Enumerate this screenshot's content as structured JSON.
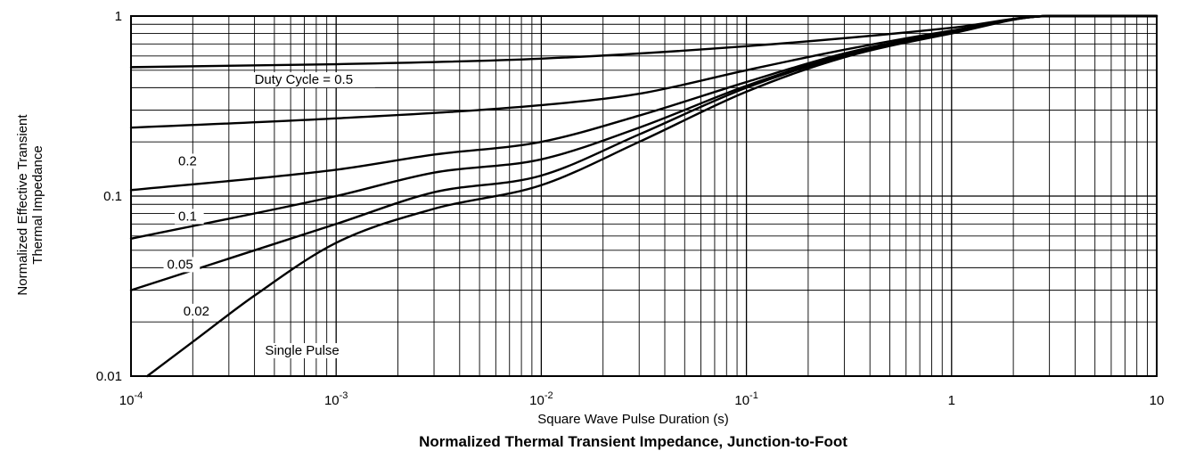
{
  "chart_data": {
    "type": "line",
    "title": "Normalized Thermal Transient Impedance, Junction-to-Foot",
    "xlabel": "Square Wave Pulse Duration (s)",
    "ylabel": [
      "Normalized Effective Transient",
      "Thermal Impedance"
    ],
    "x_scale": "log",
    "y_scale": "log",
    "xlim": [
      0.0001,
      10
    ],
    "ylim": [
      0.01,
      1
    ],
    "grid": true,
    "x_ticks": [
      {
        "value": 0.0001,
        "base": "10",
        "exp": "-4"
      },
      {
        "value": 0.001,
        "base": "10",
        "exp": "-3"
      },
      {
        "value": 0.01,
        "base": "10",
        "exp": "-2"
      },
      {
        "value": 0.1,
        "base": "10",
        "exp": "-1"
      },
      {
        "value": 1,
        "base": "1",
        "exp": ""
      },
      {
        "value": 10,
        "base": "10",
        "exp": ""
      }
    ],
    "y_ticks": [
      {
        "value": 1,
        "label": "1"
      },
      {
        "value": 0.1,
        "label": "0.1"
      },
      {
        "value": 0.01,
        "label": "0.01"
      }
    ],
    "series": [
      {
        "name": "Duty Cycle = 0.5",
        "label_at": [
          0.0004,
          0.425
        ],
        "x": [
          0.0001,
          0.001,
          0.01,
          0.1,
          1,
          3,
          10
        ],
        "y": [
          0.52,
          0.54,
          0.58,
          0.68,
          0.86,
          1.0,
          1.0
        ]
      },
      {
        "name": "0.2",
        "label_at": [
          0.00017,
          0.15
        ],
        "x": [
          0.0001,
          0.001,
          0.01,
          0.03,
          0.1,
          0.3,
          1,
          3,
          10
        ],
        "y": [
          0.24,
          0.27,
          0.32,
          0.37,
          0.5,
          0.65,
          0.83,
          1.0,
          1.0
        ]
      },
      {
        "name": "0.1",
        "label_at": [
          0.00017,
          0.074
        ],
        "x": [
          0.0001,
          0.001,
          0.003,
          0.01,
          0.03,
          0.1,
          0.3,
          1,
          3,
          10
        ],
        "y": [
          0.108,
          0.14,
          0.17,
          0.2,
          0.28,
          0.43,
          0.62,
          0.82,
          1.0,
          1.0
        ]
      },
      {
        "name": "0.05",
        "label_at": [
          0.00015,
          0.04
        ],
        "x": [
          0.0001,
          0.001,
          0.003,
          0.01,
          0.03,
          0.1,
          0.3,
          1,
          3,
          10
        ],
        "y": [
          0.058,
          0.1,
          0.135,
          0.16,
          0.24,
          0.41,
          0.61,
          0.81,
          1.0,
          1.0
        ]
      },
      {
        "name": "0.02",
        "label_at": [
          0.00018,
          0.022
        ],
        "x": [
          0.0001,
          0.001,
          0.003,
          0.01,
          0.03,
          0.1,
          0.3,
          1,
          3,
          10
        ],
        "y": [
          0.03,
          0.07,
          0.105,
          0.13,
          0.22,
          0.4,
          0.6,
          0.81,
          1.0,
          1.0
        ]
      },
      {
        "name": "Single Pulse",
        "label_at": [
          0.00045,
          0.0133
        ],
        "x": [
          0.00012,
          0.0002,
          0.0004,
          0.001,
          0.003,
          0.01,
          0.03,
          0.1,
          0.3,
          1,
          3,
          10
        ],
        "y": [
          0.01,
          0.0155,
          0.028,
          0.055,
          0.085,
          0.115,
          0.2,
          0.38,
          0.59,
          0.8,
          1.0,
          1.0
        ]
      }
    ]
  }
}
